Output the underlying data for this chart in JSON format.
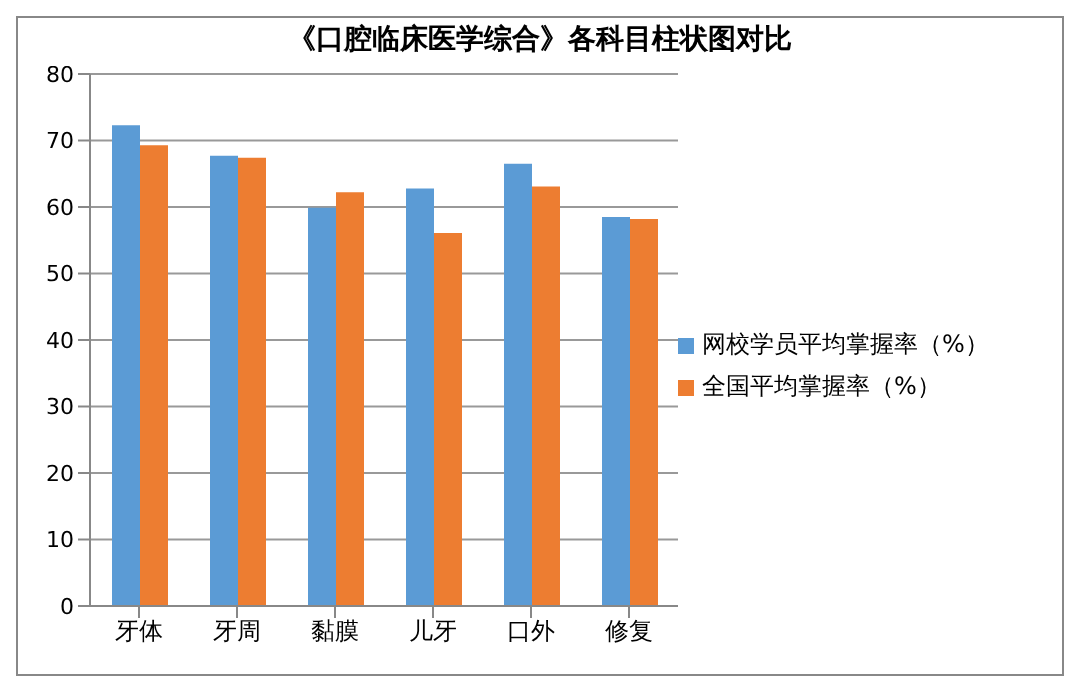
{
  "chart_data": {
    "type": "bar",
    "title": "《口腔临床医学综合》各科目柱状图对比",
    "categories": [
      "牙体",
      "牙周",
      "黏膜",
      "儿牙",
      "口外",
      "修复"
    ],
    "series": [
      {
        "name": "网校学员平均掌握率（%）",
        "color": "#5b9bd5",
        "values": [
          72.3,
          67.7,
          59.9,
          62.8,
          66.5,
          58.5
        ]
      },
      {
        "name": "全国平均掌握率（%）",
        "color": "#ed7d31",
        "values": [
          69.3,
          67.4,
          62.2,
          56.1,
          63.1,
          58.2
        ]
      }
    ],
    "ylim": [
      0,
      80
    ],
    "yticks": [
      0,
      10,
      20,
      30,
      40,
      50,
      60,
      70,
      80
    ],
    "grid": "y",
    "legend": "right"
  }
}
